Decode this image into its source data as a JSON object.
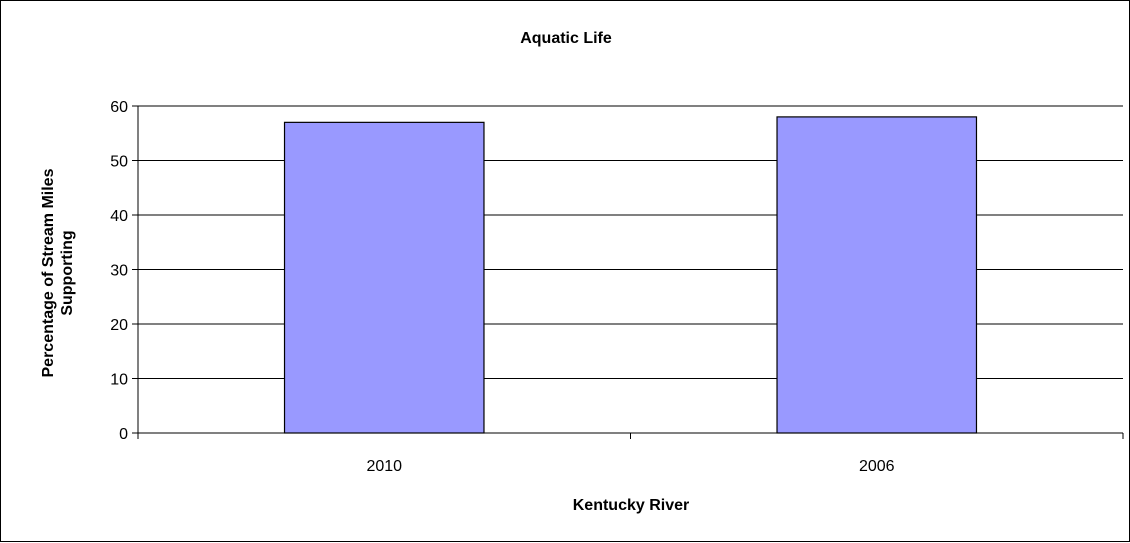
{
  "chart_data": {
    "type": "bar",
    "title": "Aquatic Life",
    "xlabel": "Kentucky River",
    "ylabel": "Percentage of Stream Miles Supporting",
    "ylabel_lines": [
      "Percentage of Stream Miles",
      "Supporting"
    ],
    "categories": [
      "2010",
      "2006"
    ],
    "values": [
      57,
      58
    ],
    "ylim": [
      0,
      60
    ],
    "yticks": [
      0,
      10,
      20,
      30,
      40,
      50,
      60
    ],
    "grid": true,
    "legend": "none",
    "colors": {
      "bar_fill": "#9999ff",
      "bar_stroke": "#000000",
      "grid": "#000000",
      "background": "#ffffff"
    }
  }
}
